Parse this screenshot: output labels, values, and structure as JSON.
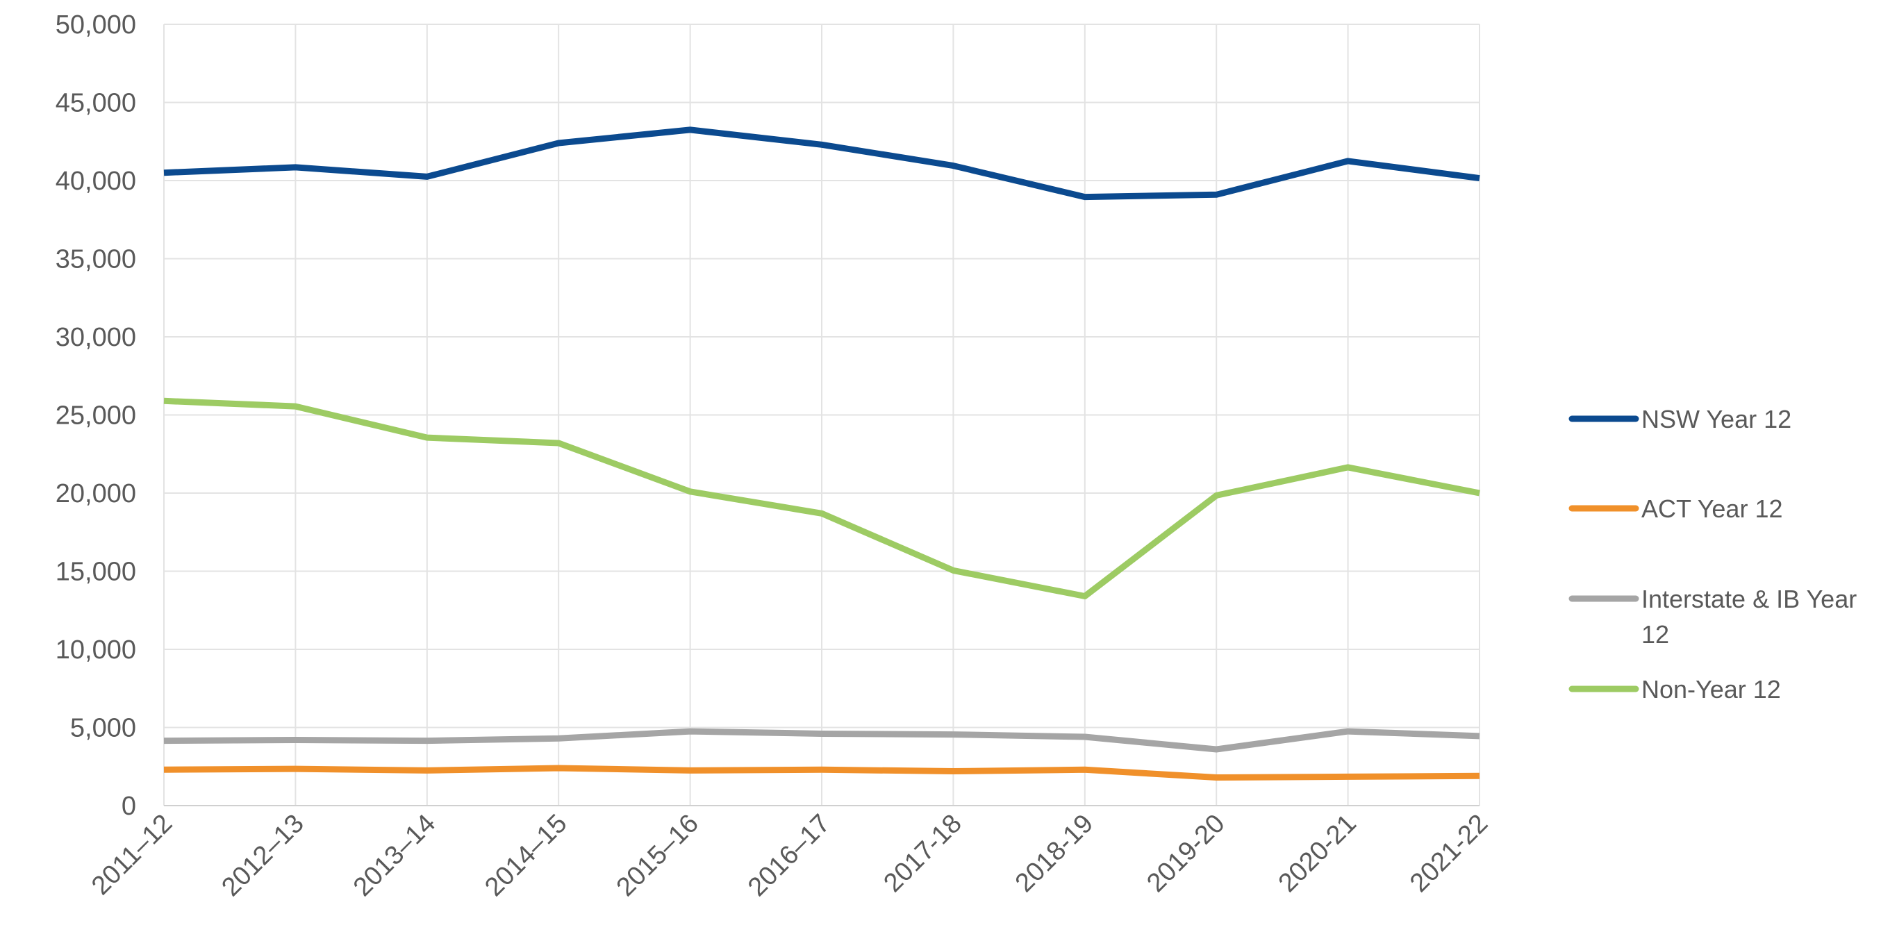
{
  "chart_data": {
    "type": "line",
    "title": "",
    "xlabel": "",
    "ylabel": "",
    "ylim": [
      0,
      50000
    ],
    "yticks": [
      "0",
      "5,000",
      "10,000",
      "15,000",
      "20,000",
      "25,000",
      "30,000",
      "35,000",
      "40,000",
      "45,000",
      "50,000"
    ],
    "categories": [
      "2011–12",
      "2012–13",
      "2013–14",
      "2014–15",
      "2015–16",
      "2016–17",
      "2017-18",
      "2018-19",
      "2019-20",
      "2020-21",
      "2021-22"
    ],
    "grid": true,
    "legend_position": "right",
    "series": [
      {
        "name": "NSW Year 12",
        "color": "#0b4a8f",
        "values": [
          40500,
          40850,
          40250,
          42400,
          43250,
          42300,
          40950,
          38950,
          39100,
          41250,
          40150
        ]
      },
      {
        "name": "ACT Year 12",
        "color": "#f0902a",
        "values": [
          2300,
          2350,
          2250,
          2400,
          2250,
          2300,
          2200,
          2300,
          1800,
          1850,
          1900
        ]
      },
      {
        "name": "Interstate & IB Year 12",
        "color": "#a5a5a5",
        "values": [
          4150,
          4200,
          4150,
          4300,
          4750,
          4600,
          4550,
          4400,
          3600,
          4750,
          4450
        ]
      },
      {
        "name": "Non-Year 12",
        "color": "#9dcb63",
        "values": [
          25900,
          25550,
          23550,
          23200,
          20100,
          18700,
          15050,
          13400,
          19850,
          21650,
          20000
        ]
      }
    ]
  }
}
